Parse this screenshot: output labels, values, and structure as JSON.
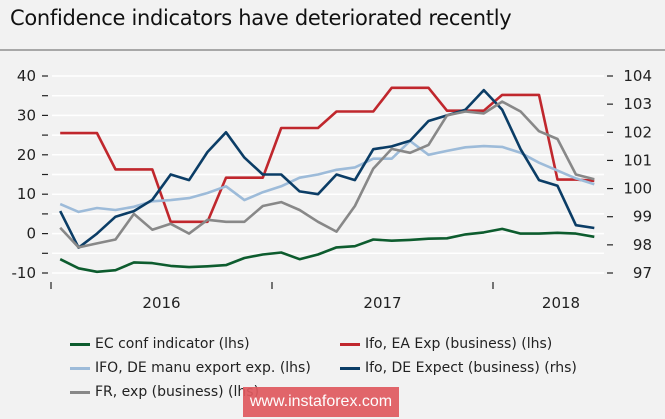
{
  "title": "Confidence indicators have deteriorated recently",
  "watermark": "www.instaforex.com",
  "chart_data": {
    "type": "line",
    "title": "Confidence indicators have deteriorated recently",
    "x_label": "",
    "x": [
      "2016-01",
      "2016-02",
      "2016-03",
      "2016-04",
      "2016-05",
      "2016-06",
      "2016-07",
      "2016-08",
      "2016-09",
      "2016-10",
      "2016-11",
      "2016-12",
      "2017-01",
      "2017-02",
      "2017-03",
      "2017-04",
      "2017-05",
      "2017-06",
      "2017-07",
      "2017-08",
      "2017-09",
      "2017-10",
      "2017-11",
      "2017-12",
      "2018-01",
      "2018-02",
      "2018-03",
      "2018-04",
      "2018-05",
      "2018-06"
    ],
    "x_tick_labels": [
      {
        "label": "2016",
        "year": 2016
      },
      {
        "label": "2017",
        "year": 2017
      },
      {
        "label": "2018",
        "year": 2018
      }
    ],
    "left_axis": {
      "label": "lhs",
      "ylim": [
        -10,
        40
      ],
      "ticks": [
        -10,
        0,
        10,
        20,
        30,
        40
      ],
      "minor_ticks": [
        -5,
        5,
        15,
        25,
        35
      ]
    },
    "right_axis": {
      "label": "rhs",
      "ylim": [
        97,
        104
      ],
      "ticks": [
        97,
        98,
        99,
        100,
        101,
        102,
        103,
        104
      ]
    },
    "grid": true,
    "legend_position": "bottom",
    "series": [
      {
        "name": "EC conf indicator (lhs)",
        "axis": "left",
        "color": "#0d5c2e",
        "values": [
          -6.5,
          -8.8,
          -9.7,
          -9.3,
          -7.3,
          -7.5,
          -8.2,
          -8.5,
          -8.3,
          -8.0,
          -6.2,
          -5.3,
          -4.8,
          -6.5,
          -5.3,
          -3.5,
          -3.2,
          -1.5,
          -1.8,
          -1.6,
          -1.3,
          -1.2,
          -0.2,
          0.3,
          1.2,
          0.0,
          0.0,
          0.2,
          0.0,
          -0.8
        ]
      },
      {
        "name": "Ifo, EA Exp (business) (lhs)",
        "axis": "left",
        "color": "#c0272d",
        "values": [
          25.5,
          25.5,
          25.5,
          16.3,
          16.3,
          16.3,
          3.0,
          3.0,
          3.0,
          14.2,
          14.2,
          14.2,
          26.8,
          26.8,
          26.8,
          31.0,
          31.0,
          31.0,
          37.0,
          37.0,
          37.0,
          31.2,
          31.2,
          31.2,
          35.2,
          35.2,
          35.2,
          13.7,
          13.7,
          13.4
        ]
      },
      {
        "name": "IFO, DE manu export exp. (lhs)",
        "axis": "left",
        "color": "#9dbbd9",
        "values": [
          7.5,
          5.5,
          6.5,
          6.0,
          6.8,
          8.2,
          8.5,
          9.0,
          10.3,
          12.0,
          8.5,
          10.5,
          12.0,
          14.2,
          15.0,
          16.2,
          16.8,
          19.0,
          19.0,
          23.5,
          20.0,
          21.0,
          21.9,
          22.2,
          22.0,
          20.5,
          18.0,
          16.0,
          14.0,
          12.5
        ]
      },
      {
        "name": "Ifo, DE Expect (business) (rhs)",
        "axis": "right",
        "color": "#0b3d66",
        "values": [
          99.2,
          97.9,
          98.4,
          99.0,
          99.2,
          99.6,
          100.5,
          100.3,
          101.3,
          102.0,
          101.1,
          100.5,
          100.5,
          99.9,
          99.8,
          100.5,
          100.3,
          101.4,
          101.5,
          101.7,
          102.4,
          102.6,
          102.8,
          103.5,
          102.8,
          101.4,
          100.3,
          100.1,
          98.7,
          98.6
        ]
      },
      {
        "name": "FR, exp (business) (lhs)",
        "axis": "left",
        "color": "#888888",
        "values": [
          1.5,
          -3.5,
          -2.5,
          -1.5,
          5.0,
          1.0,
          2.5,
          0.0,
          3.5,
          3.0,
          3.0,
          7.0,
          8.0,
          6.0,
          3.0,
          0.5,
          7.0,
          16.5,
          21.5,
          20.5,
          22.5,
          30.0,
          31.0,
          30.5,
          33.5,
          31.0,
          26.0,
          24.0,
          15.0,
          13.8
        ]
      }
    ]
  },
  "legend": [
    {
      "label": "EC conf indicator (lhs)",
      "color": "#0d5c2e"
    },
    {
      "label": "Ifo, EA Exp (business) (lhs)",
      "color": "#c0272d"
    },
    {
      "label": "IFO, DE manu export exp. (lhs)",
      "color": "#9dbbd9"
    },
    {
      "label": "Ifo, DE Expect (business) (rhs)",
      "color": "#0b3d66"
    },
    {
      "label": "FR, exp (business) (lhs)",
      "color": "#888888"
    }
  ]
}
